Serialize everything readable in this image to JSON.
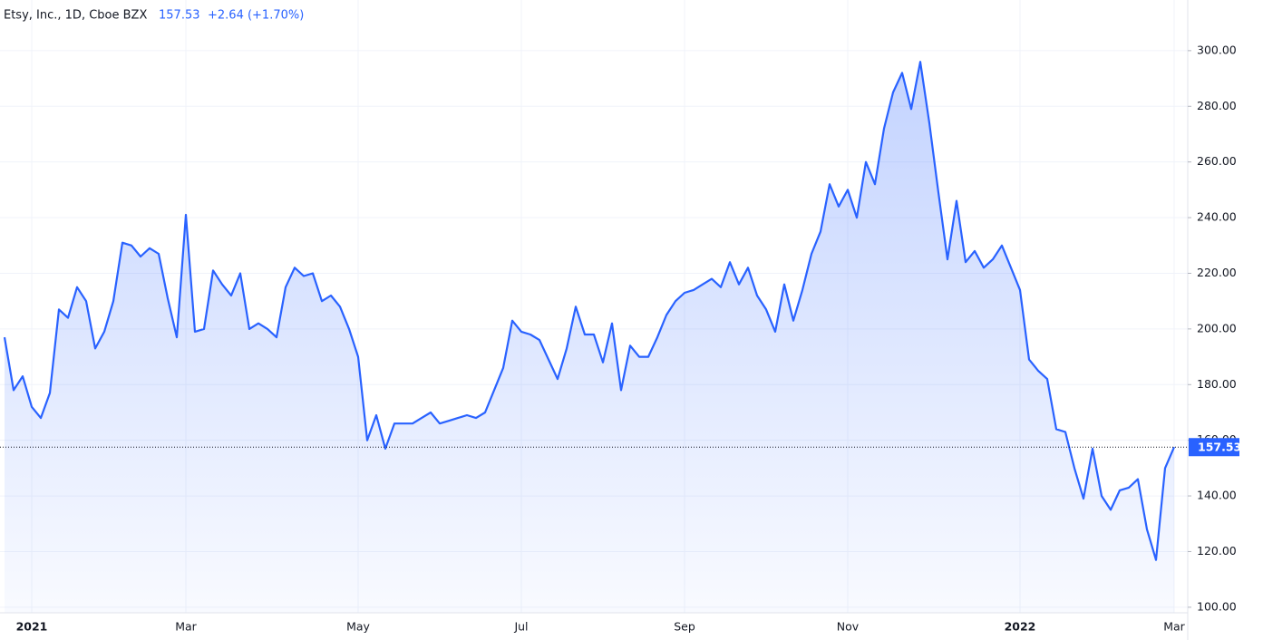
{
  "header": {
    "symbol": "Etsy, Inc., 1D, Cboe BZX",
    "change": "+2.64 (+1.70%)"
  },
  "chart_data": {
    "type": "area",
    "color": "#2962ff",
    "categories": [
      null,
      null,
      null,
      "2021",
      null,
      null,
      null,
      null,
      null,
      null,
      null,
      null,
      null,
      null,
      null,
      null,
      null,
      null,
      null,
      null,
      "Mar",
      null,
      null,
      null,
      null,
      null,
      null,
      null,
      null,
      null,
      null,
      null,
      null,
      null,
      null,
      null,
      null,
      null,
      null,
      "May",
      null,
      null,
      null,
      null,
      null,
      null,
      null,
      null,
      null,
      null,
      null,
      null,
      null,
      null,
      null,
      null,
      null,
      "Jul",
      null,
      null,
      null,
      null,
      null,
      null,
      null,
      null,
      null,
      null,
      null,
      null,
      null,
      null,
      null,
      null,
      null,
      "Sep",
      null,
      null,
      null,
      null,
      null,
      null,
      null,
      null,
      null,
      null,
      null,
      null,
      null,
      null,
      null,
      null,
      null,
      "Nov",
      null,
      null,
      null,
      null,
      null,
      null,
      null,
      null,
      null,
      null,
      null,
      null,
      null,
      null,
      null,
      null,
      null,
      null,
      "2022",
      null,
      null,
      null,
      null,
      null,
      null,
      null,
      null,
      null,
      null,
      null,
      null,
      null,
      null,
      null,
      null,
      "Mar"
    ],
    "values": [
      197,
      178,
      183,
      172,
      168,
      177,
      207,
      204,
      215,
      210,
      193,
      199,
      210,
      231,
      230,
      226,
      229,
      227,
      211,
      197,
      241,
      199,
      200,
      221,
      216,
      212,
      220,
      200,
      202,
      200,
      197,
      215,
      222,
      219,
      220,
      210,
      212,
      208,
      200,
      190,
      160,
      169,
      157,
      166,
      166,
      166,
      168,
      170,
      166,
      167,
      168,
      169,
      168,
      170,
      178,
      186,
      203,
      199,
      198,
      196,
      189,
      182,
      193,
      208,
      198,
      198,
      188,
      202,
      178,
      194,
      190,
      190,
      197,
      205,
      210,
      213,
      214,
      216,
      218,
      215,
      224,
      216,
      222,
      212,
      207,
      199,
      216,
      203,
      214,
      227,
      235,
      252,
      244,
      250,
      240,
      260,
      252,
      272,
      285,
      292,
      279,
      296,
      274,
      249,
      225,
      246,
      224,
      228,
      222,
      225,
      230,
      222,
      214,
      189,
      185,
      182,
      164,
      163,
      150,
      139,
      157,
      140,
      135,
      142,
      143,
      146,
      128,
      117,
      150,
      157.53
    ],
    "ylim": [
      98,
      318.2
    ],
    "yticks": [
      {
        "value": 100,
        "label": "100.00"
      },
      {
        "value": 120,
        "label": "120.00"
      },
      {
        "value": 140,
        "label": "140.00"
      },
      {
        "value": 160,
        "label": "160.00"
      },
      {
        "value": 180,
        "label": "180.00"
      },
      {
        "value": 200,
        "label": "200.00"
      },
      {
        "value": 220,
        "label": "220.00"
      },
      {
        "value": 240,
        "label": "240.00"
      },
      {
        "value": 260,
        "label": "260.00"
      },
      {
        "value": 280,
        "label": "280.00"
      },
      {
        "value": 300,
        "label": "300.00"
      }
    ],
    "grid": true
  }
}
